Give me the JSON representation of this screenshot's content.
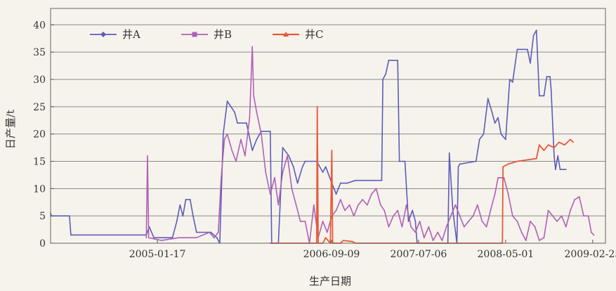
{
  "chart_data": {
    "type": "line",
    "xlabel": "生产日期",
    "ylabel": "日产量/t",
    "ylim": [
      0,
      43
    ],
    "yticks": [
      0,
      5,
      10,
      15,
      20,
      25,
      30,
      35,
      40
    ],
    "xlim": [
      "2004-01-15",
      "2009-04-10"
    ],
    "xticks": [
      "2005-01-17",
      "2006-09-09",
      "2007-07-06",
      "2008-05-01",
      "2009-02-25"
    ],
    "grid": "horizontal",
    "legend_position": "top",
    "series": [
      {
        "name": "井A",
        "color": "#5c5cb8",
        "marker": "diamond",
        "points": [
          [
            "2004-01-15",
            5.5
          ],
          [
            "2004-01-18",
            5
          ],
          [
            "2004-03-20",
            5
          ],
          [
            "2004-03-25",
            1.5
          ],
          [
            "2004-12-10",
            1.5
          ],
          [
            "2004-12-20",
            3
          ],
          [
            "2005-01-05",
            1
          ],
          [
            "2005-03-10",
            1
          ],
          [
            "2005-03-25",
            4
          ],
          [
            "2005-04-05",
            7
          ],
          [
            "2005-04-15",
            5
          ],
          [
            "2005-04-25",
            8
          ],
          [
            "2005-05-10",
            8
          ],
          [
            "2005-05-20",
            5
          ],
          [
            "2005-06-01",
            2
          ],
          [
            "2005-07-20",
            2
          ],
          [
            "2005-08-10",
            1
          ],
          [
            "2005-08-20",
            0
          ],
          [
            "2005-09-01",
            20
          ],
          [
            "2005-09-15",
            26
          ],
          [
            "2005-10-10",
            24
          ],
          [
            "2005-10-20",
            22
          ],
          [
            "2005-11-20",
            22
          ],
          [
            "2005-12-10",
            17
          ],
          [
            "2005-12-25",
            19
          ],
          [
            "2006-01-10",
            20.5
          ],
          [
            "2006-02-10",
            20.5
          ],
          [
            "2006-02-15",
            0
          ],
          [
            "2006-03-10",
            0
          ],
          [
            "2006-03-25",
            17.5
          ],
          [
            "2006-04-15",
            16
          ],
          [
            "2006-05-01",
            14
          ],
          [
            "2006-05-15",
            11
          ],
          [
            "2006-06-01",
            14
          ],
          [
            "2006-06-10",
            15
          ],
          [
            "2006-07-20",
            15
          ],
          [
            "2006-08-10",
            13
          ],
          [
            "2006-08-20",
            14
          ],
          [
            "2006-09-10",
            11
          ],
          [
            "2006-09-25",
            9
          ],
          [
            "2006-10-10",
            11
          ],
          [
            "2006-11-01",
            11
          ],
          [
            "2006-12-01",
            11.5
          ],
          [
            "2007-03-01",
            11.5
          ],
          [
            "2007-03-05",
            30
          ],
          [
            "2007-03-15",
            31
          ],
          [
            "2007-03-25",
            33.5
          ],
          [
            "2007-04-25",
            33.5
          ],
          [
            "2007-05-01",
            15
          ],
          [
            "2007-05-20",
            15
          ],
          [
            "2007-06-01",
            4
          ],
          [
            "2007-06-15",
            6
          ],
          [
            "2007-06-25",
            4
          ],
          [
            "2007-07-01",
            0
          ],
          [
            "2007-10-15",
            0
          ],
          [
            "2007-10-20",
            16.5
          ],
          [
            "2007-11-01",
            6
          ],
          [
            "2007-11-15",
            0
          ],
          [
            "2007-11-20",
            14
          ],
          [
            "2007-11-25",
            14.5
          ],
          [
            "2008-01-20",
            15
          ],
          [
            "2008-02-01",
            19
          ],
          [
            "2008-02-15",
            20
          ],
          [
            "2008-03-01",
            26.5
          ],
          [
            "2008-03-15",
            24
          ],
          [
            "2008-03-25",
            22
          ],
          [
            "2008-04-05",
            23
          ],
          [
            "2008-04-15",
            20
          ],
          [
            "2008-05-01",
            19
          ],
          [
            "2008-05-15",
            30
          ],
          [
            "2008-05-25",
            29.5
          ],
          [
            "2008-06-10",
            35.5
          ],
          [
            "2008-07-15",
            35.5
          ],
          [
            "2008-07-25",
            33
          ],
          [
            "2008-08-05",
            38
          ],
          [
            "2008-08-15",
            39
          ],
          [
            "2008-08-25",
            27
          ],
          [
            "2008-09-10",
            27
          ],
          [
            "2008-09-20",
            30.5
          ],
          [
            "2008-10-01",
            30.5
          ],
          [
            "2008-10-05",
            28
          ],
          [
            "2008-10-15",
            16
          ],
          [
            "2008-10-20",
            13.5
          ],
          [
            "2008-10-28",
            16
          ],
          [
            "2008-11-05",
            13.5
          ],
          [
            "2008-11-25",
            13.5
          ]
        ]
      },
      {
        "name": "井B",
        "color": "#b060b4",
        "marker": "square",
        "points": [
          [
            "2004-12-10",
            1
          ],
          [
            "2004-12-14",
            16
          ],
          [
            "2004-12-18",
            1
          ],
          [
            "2005-02-01",
            0.5
          ],
          [
            "2005-04-01",
            1
          ],
          [
            "2005-06-01",
            1
          ],
          [
            "2005-07-15",
            2
          ],
          [
            "2005-08-01",
            1
          ],
          [
            "2005-08-15",
            2
          ],
          [
            "2005-08-25",
            12
          ],
          [
            "2005-09-05",
            19
          ],
          [
            "2005-09-15",
            20
          ],
          [
            "2005-10-01",
            17
          ],
          [
            "2005-10-15",
            15
          ],
          [
            "2005-11-01",
            19
          ],
          [
            "2005-11-15",
            16
          ],
          [
            "2005-12-01",
            23
          ],
          [
            "2005-12-10",
            36
          ],
          [
            "2005-12-15",
            27
          ],
          [
            "2005-12-25",
            24
          ],
          [
            "2006-01-10",
            20
          ],
          [
            "2006-01-25",
            13
          ],
          [
            "2006-02-10",
            9
          ],
          [
            "2006-02-25",
            12
          ],
          [
            "2006-03-10",
            7
          ],
          [
            "2006-03-25",
            13
          ],
          [
            "2006-04-10",
            16
          ],
          [
            "2006-04-25",
            10
          ],
          [
            "2006-05-10",
            7
          ],
          [
            "2006-05-25",
            4
          ],
          [
            "2006-06-10",
            4
          ],
          [
            "2006-06-25",
            0
          ],
          [
            "2006-07-10",
            7
          ],
          [
            "2006-07-25",
            1
          ],
          [
            "2006-08-10",
            4
          ],
          [
            "2006-08-25",
            2
          ],
          [
            "2006-09-10",
            5
          ],
          [
            "2006-09-25",
            6
          ],
          [
            "2006-10-10",
            8
          ],
          [
            "2006-10-25",
            6
          ],
          [
            "2006-11-10",
            7
          ],
          [
            "2006-11-25",
            5
          ],
          [
            "2006-12-10",
            7
          ],
          [
            "2006-12-25",
            8
          ],
          [
            "2007-01-10",
            7
          ],
          [
            "2007-01-25",
            9
          ],
          [
            "2007-02-10",
            10
          ],
          [
            "2007-02-25",
            7
          ],
          [
            "2007-03-10",
            6
          ],
          [
            "2007-03-25",
            3
          ],
          [
            "2007-04-10",
            5
          ],
          [
            "2007-04-25",
            6
          ],
          [
            "2007-05-10",
            3
          ],
          [
            "2007-05-25",
            7
          ],
          [
            "2007-06-10",
            3
          ],
          [
            "2007-06-25",
            2
          ],
          [
            "2007-07-10",
            4
          ],
          [
            "2007-07-25",
            1
          ],
          [
            "2007-08-10",
            3
          ],
          [
            "2007-08-25",
            0.5
          ],
          [
            "2007-09-10",
            2
          ],
          [
            "2007-09-25",
            0.5
          ],
          [
            "2007-10-10",
            3
          ],
          [
            "2007-10-25",
            5
          ],
          [
            "2007-11-10",
            7
          ],
          [
            "2007-11-25",
            5
          ],
          [
            "2007-12-10",
            3
          ],
          [
            "2007-12-25",
            4
          ],
          [
            "2008-01-10",
            5
          ],
          [
            "2008-01-25",
            7
          ],
          [
            "2008-02-10",
            4
          ],
          [
            "2008-02-25",
            3
          ],
          [
            "2008-03-10",
            6
          ],
          [
            "2008-03-25",
            9
          ],
          [
            "2008-04-05",
            12
          ],
          [
            "2008-04-25",
            12
          ],
          [
            "2008-05-10",
            9
          ],
          [
            "2008-05-25",
            5
          ],
          [
            "2008-06-10",
            4
          ],
          [
            "2008-06-25",
            2
          ],
          [
            "2008-07-10",
            0.5
          ],
          [
            "2008-07-25",
            4
          ],
          [
            "2008-08-10",
            3
          ],
          [
            "2008-08-25",
            0.5
          ],
          [
            "2008-09-10",
            1
          ],
          [
            "2008-09-25",
            6
          ],
          [
            "2008-10-10",
            5
          ],
          [
            "2008-10-25",
            4
          ],
          [
            "2008-11-10",
            5
          ],
          [
            "2008-11-25",
            3
          ],
          [
            "2008-12-10",
            6
          ],
          [
            "2008-12-25",
            8
          ],
          [
            "2009-01-10",
            8.5
          ],
          [
            "2009-01-25",
            5
          ],
          [
            "2009-02-10",
            5
          ],
          [
            "2009-02-20",
            2
          ],
          [
            "2009-03-01",
            1.5
          ]
        ]
      },
      {
        "name": "井C",
        "color": "#e85838",
        "marker": "triangle",
        "points": [
          [
            "2006-02-10",
            0
          ],
          [
            "2006-07-20",
            0
          ],
          [
            "2006-07-22",
            25
          ],
          [
            "2006-07-25",
            0
          ],
          [
            "2006-08-10",
            0
          ],
          [
            "2006-08-20",
            1
          ],
          [
            "2006-09-05",
            0
          ],
          [
            "2006-09-10",
            17
          ],
          [
            "2006-09-13",
            0
          ],
          [
            "2006-10-10",
            0
          ],
          [
            "2006-10-20",
            0.5
          ],
          [
            "2006-11-20",
            0.3
          ],
          [
            "2006-12-01",
            0
          ],
          [
            "2007-12-20",
            0
          ],
          [
            "2008-04-20",
            0
          ],
          [
            "2008-04-22",
            14
          ],
          [
            "2008-05-10",
            14.5
          ],
          [
            "2008-06-10",
            15
          ],
          [
            "2008-08-15",
            15.5
          ],
          [
            "2008-08-25",
            18
          ],
          [
            "2008-09-10",
            17
          ],
          [
            "2008-09-25",
            18
          ],
          [
            "2008-10-15",
            17.5
          ],
          [
            "2008-11-01",
            18.5
          ],
          [
            "2008-11-20",
            18
          ],
          [
            "2008-12-10",
            19
          ],
          [
            "2008-12-20",
            18.5
          ]
        ]
      }
    ]
  }
}
